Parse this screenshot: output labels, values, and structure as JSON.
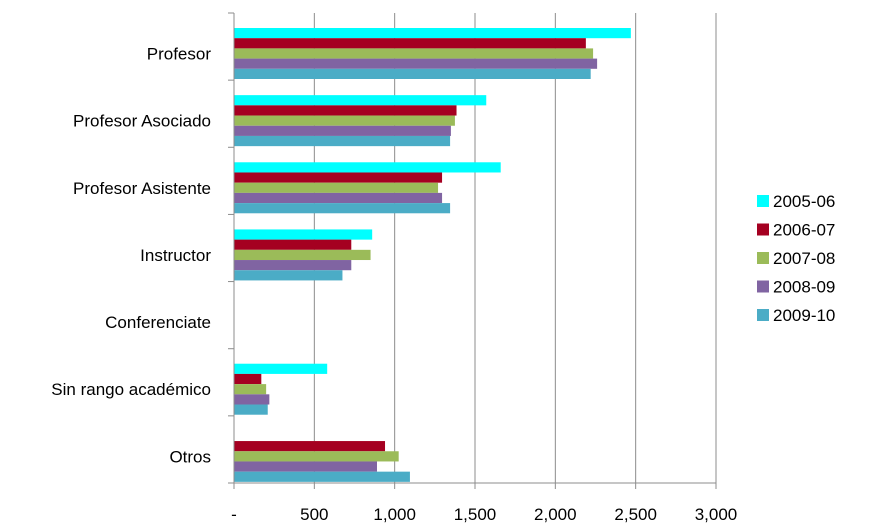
{
  "chart_data": {
    "type": "bar",
    "orientation": "horizontal",
    "categories": [
      "Profesor",
      "Profesor Asociado",
      "Profesor Asistente",
      "Instructor",
      "Conferenciate",
      "Sin rango académico",
      "Otros"
    ],
    "series": [
      {
        "name": "2005-06",
        "color": "#00ffff",
        "values": [
          2470,
          1570,
          1660,
          860,
          0,
          580,
          0
        ]
      },
      {
        "name": "2006-07",
        "color": "#a50021",
        "values": [
          2190,
          1385,
          1295,
          730,
          0,
          170,
          940
        ]
      },
      {
        "name": "2007-08",
        "color": "#9bbb59",
        "values": [
          2235,
          1375,
          1270,
          850,
          0,
          200,
          1025
        ]
      },
      {
        "name": "2008-09",
        "color": "#8064a2",
        "values": [
          2260,
          1350,
          1295,
          730,
          0,
          220,
          890
        ]
      },
      {
        "name": "2009-10",
        "color": "#4bacc6",
        "values": [
          2220,
          1345,
          1345,
          675,
          0,
          210,
          1095
        ]
      }
    ],
    "xlim": [
      0,
      3000
    ],
    "xticks": [
      0,
      500,
      1000,
      1500,
      2000,
      2500,
      3000
    ],
    "xtick_labels": [
      "-",
      "500",
      "1,000",
      "1,500",
      "2,000",
      "2,500",
      "3,000"
    ],
    "grid": "vertical",
    "legend_position": "right"
  }
}
